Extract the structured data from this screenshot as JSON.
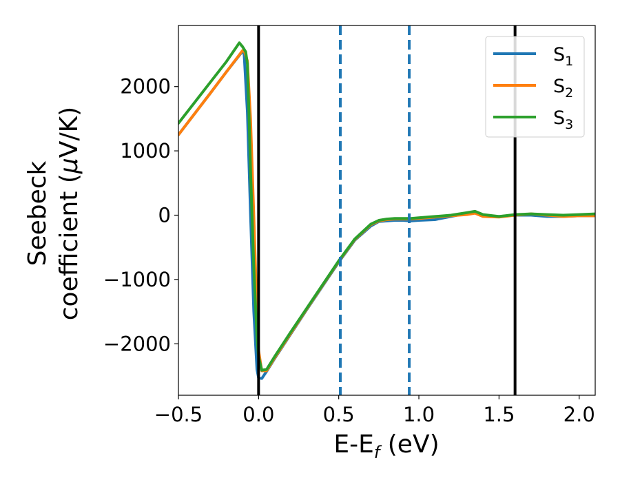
{
  "chart_data": {
    "type": "line",
    "title": "",
    "xlabel": "E-E",
    "xlabel_sub": "f",
    "xlabel_unit": " (eV)",
    "ylabel_line1": "Seebeck",
    "ylabel_line2_prefix": "coefficient  (",
    "ylabel_mu": "μ",
    "ylabel_line2_suffix": "V/K)",
    "xlim": [
      -0.5,
      2.1
    ],
    "ylim": [
      -2800,
      2950
    ],
    "xticks": [
      -0.5,
      0.0,
      0.5,
      1.0,
      1.5,
      2.0
    ],
    "xtick_labels": [
      "−0.5",
      "0.0",
      "0.5",
      "1.0",
      "1.5",
      "2.0"
    ],
    "yticks": [
      -2000,
      -1000,
      0,
      1000,
      2000
    ],
    "ytick_labels": [
      "−2000",
      "−1000",
      "0",
      "1000",
      "2000"
    ],
    "grid": false,
    "legend_position": "top-right",
    "vertical_lines": [
      {
        "x": 0.0,
        "style": "solid",
        "color": "#000000"
      },
      {
        "x": 1.6,
        "style": "solid",
        "color": "#000000"
      },
      {
        "x": 0.51,
        "style": "dashed",
        "color": "#1f77b4"
      },
      {
        "x": 0.94,
        "style": "dashed",
        "color": "#1f77b4"
      }
    ],
    "series": [
      {
        "name": "S",
        "sub": "1",
        "color": "#1f77b4",
        "x": [
          -0.5,
          -0.3,
          -0.2,
          -0.1,
          -0.09,
          -0.07,
          -0.05,
          -0.03,
          -0.01,
          0.0,
          0.02,
          0.05,
          0.1,
          0.2,
          0.3,
          0.4,
          0.5,
          0.6,
          0.7,
          0.75,
          0.8,
          0.85,
          0.9,
          0.95,
          1.0,
          1.1,
          1.2,
          1.3,
          1.35,
          1.4,
          1.5,
          1.6,
          1.7,
          1.8,
          1.9,
          2.0,
          2.1
        ],
        "y": [
          1250,
          1900,
          2230,
          2550,
          2500,
          1600,
          0,
          -1500,
          -2400,
          -2530,
          -2540,
          -2430,
          -2230,
          -1850,
          -1470,
          -1100,
          -730,
          -390,
          -170,
          -100,
          -90,
          -80,
          -80,
          -90,
          -80,
          -70,
          -20,
          30,
          40,
          -10,
          -20,
          0,
          0,
          -20,
          -20,
          -10,
          -10
        ]
      },
      {
        "name": "S",
        "sub": "2",
        "color": "#ff7f0e",
        "x": [
          -0.5,
          -0.3,
          -0.2,
          -0.1,
          -0.09,
          -0.07,
          -0.05,
          -0.03,
          -0.01,
          0.0,
          0.02,
          0.05,
          0.1,
          0.2,
          0.3,
          0.4,
          0.5,
          0.6,
          0.7,
          0.75,
          0.8,
          0.85,
          0.9,
          0.95,
          1.0,
          1.1,
          1.2,
          1.3,
          1.35,
          1.4,
          1.5,
          1.6,
          1.7,
          1.8,
          1.9,
          2.0,
          2.1
        ],
        "y": [
          1250,
          1900,
          2230,
          2560,
          2560,
          2400,
          1500,
          0,
          -1500,
          -2100,
          -2420,
          -2420,
          -2220,
          -1840,
          -1460,
          -1090,
          -720,
          -380,
          -150,
          -90,
          -70,
          -60,
          -60,
          -60,
          -50,
          -30,
          -10,
          10,
          30,
          -20,
          -30,
          0,
          20,
          0,
          -20,
          -10,
          -10
        ]
      },
      {
        "name": "S",
        "sub": "3",
        "color": "#2ca02c",
        "x": [
          -0.5,
          -0.3,
          -0.2,
          -0.12,
          -0.1,
          -0.08,
          -0.07,
          -0.06,
          -0.05,
          -0.03,
          -0.01,
          0.0,
          0.02,
          0.05,
          0.1,
          0.2,
          0.3,
          0.4,
          0.5,
          0.6,
          0.7,
          0.75,
          0.8,
          0.85,
          0.9,
          0.95,
          1.0,
          1.1,
          1.2,
          1.3,
          1.35,
          1.4,
          1.5,
          1.6,
          1.7,
          1.8,
          1.9,
          2.0,
          2.1
        ],
        "y": [
          1430,
          2070,
          2390,
          2680,
          2620,
          2540,
          2350,
          1600,
          700,
          -800,
          -1900,
          -2200,
          -2410,
          -2400,
          -2200,
          -1820,
          -1450,
          -1080,
          -710,
          -370,
          -140,
          -80,
          -60,
          -50,
          -50,
          -50,
          -40,
          -20,
          0,
          40,
          60,
          10,
          -20,
          10,
          20,
          10,
          0,
          10,
          20
        ]
      }
    ]
  }
}
